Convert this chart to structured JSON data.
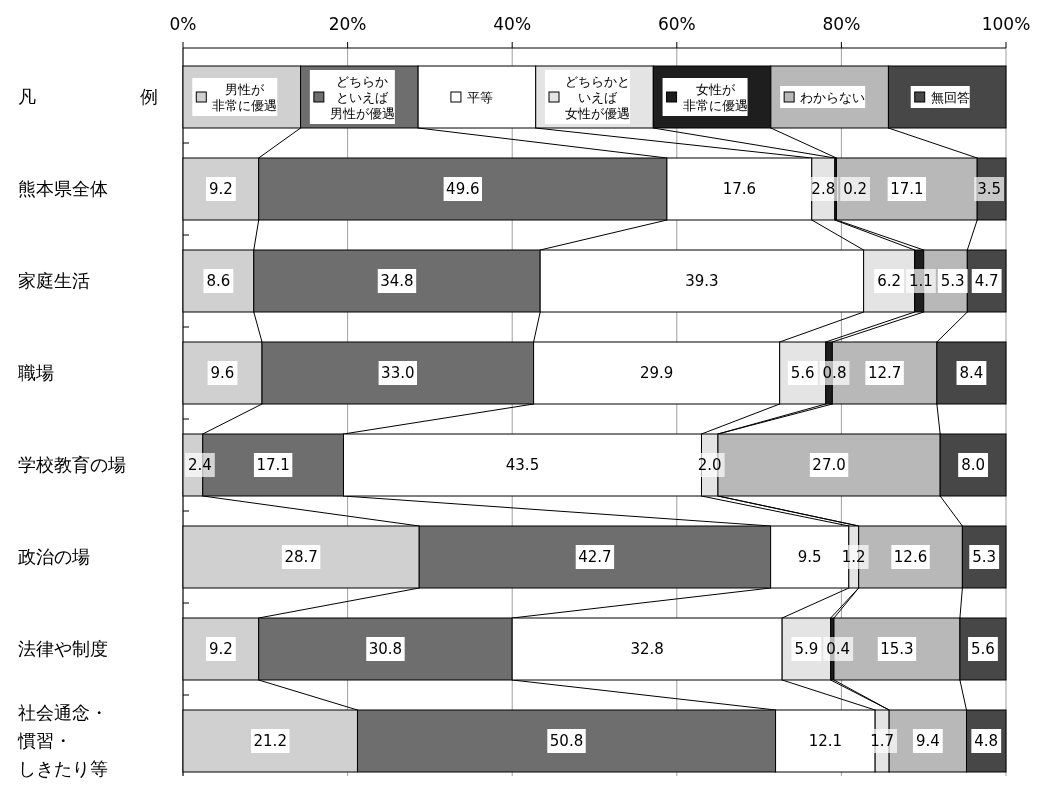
{
  "chart_data": {
    "type": "bar",
    "orientation": "horizontal",
    "stacked": true,
    "legend": "top",
    "legend_title": "凡例",
    "grid": "x",
    "categories": [
      "熊本県全体",
      "家庭生活",
      "職場",
      "学校教育の場",
      "政治の場",
      "法律や制度",
      "社会通念・慣習・しきたり等"
    ],
    "xlim": [
      0,
      100
    ],
    "xticks": [
      {
        "value": 0,
        "label": "0%"
      },
      {
        "value": 20,
        "label": "20%"
      },
      {
        "value": 40,
        "label": "40%"
      },
      {
        "value": 60,
        "label": "60%"
      },
      {
        "value": 80,
        "label": "80%"
      },
      {
        "value": 100,
        "label": "100%"
      }
    ],
    "series": [
      {
        "name": "男性が非常に優遇",
        "color": "#d0d0d0",
        "values": [
          9.2,
          8.6,
          9.6,
          2.4,
          28.7,
          9.2,
          21.2
        ],
        "value_labels": [
          "9.2",
          "8.6",
          "9.6",
          "2.4",
          "28.7",
          "9.2",
          "21.2"
        ]
      },
      {
        "name": "どちらかといえば男性が優遇",
        "color": "#6e6e6e",
        "values": [
          49.6,
          34.8,
          33.0,
          17.1,
          42.7,
          30.8,
          50.8
        ],
        "value_labels": [
          "49.6",
          "34.8",
          "33.0",
          "17.1",
          "42.7",
          "30.8",
          "50.8"
        ]
      },
      {
        "name": "平等",
        "color": "#ffffff",
        "values": [
          17.6,
          39.3,
          29.9,
          43.5,
          9.5,
          32.8,
          12.1
        ],
        "value_labels": [
          "17.6",
          "39.3",
          "29.9",
          "43.5",
          "9.5",
          "32.8",
          "12.1"
        ]
      },
      {
        "name": "どちらかといえば女性が優遇",
        "color": "#e4e4e4",
        "values": [
          2.8,
          6.2,
          5.6,
          2.0,
          1.2,
          5.9,
          1.7
        ],
        "value_labels": [
          "2.8",
          "6.2",
          "5.6",
          "2.0",
          "1.2",
          "5.9",
          "1.7"
        ]
      },
      {
        "name": "女性が非常に優遇",
        "color": "#1e1e1e",
        "values": [
          0.2,
          1.1,
          0.8,
          0,
          0,
          0.4,
          0
        ],
        "value_labels": [
          "0.2",
          "1.1",
          "0.8",
          null,
          null,
          "0.4",
          null
        ]
      },
      {
        "name": "わからない",
        "color": "#b8b8b8",
        "values": [
          17.1,
          5.3,
          12.7,
          27.0,
          12.6,
          15.3,
          9.4
        ],
        "value_labels": [
          "17.1",
          "5.3",
          "12.7",
          "27.0",
          "12.6",
          "15.3",
          "9.4"
        ]
      },
      {
        "name": "無回答",
        "color": "#474747",
        "values": [
          3.5,
          4.7,
          8.4,
          8.0,
          5.3,
          5.6,
          4.8
        ],
        "value_labels": [
          "3.5",
          "4.7",
          "8.4",
          "8.0",
          "5.3",
          "5.6",
          "4.8"
        ]
      }
    ]
  }
}
